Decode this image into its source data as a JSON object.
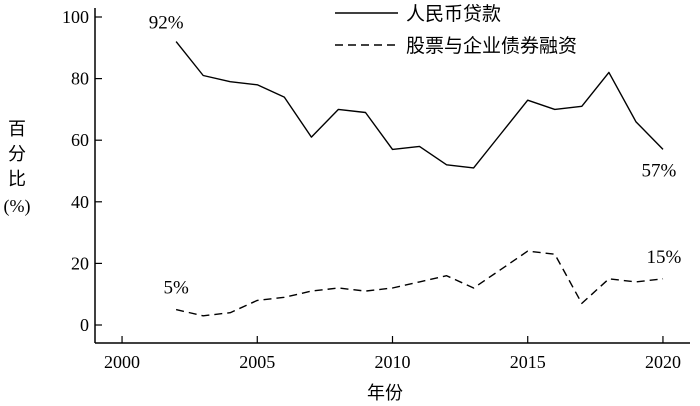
{
  "chart_data": {
    "type": "line",
    "title": "",
    "xlabel": "年份",
    "ylabel_lines": [
      "百",
      "分",
      "比",
      "(%)"
    ],
    "xlim": [
      1999,
      2021
    ],
    "ylim": [
      0,
      100
    ],
    "x_ticks": [
      2000,
      2005,
      2010,
      2015,
      2020
    ],
    "y_ticks": [
      0,
      20,
      40,
      60,
      80,
      100
    ],
    "grid": false,
    "legend_position": "top-right",
    "series": [
      {
        "name": "人民币贷款",
        "style": "solid",
        "color": "#000000",
        "x": [
          2002,
          2003,
          2004,
          2005,
          2006,
          2007,
          2008,
          2009,
          2010,
          2011,
          2012,
          2013,
          2014,
          2015,
          2016,
          2017,
          2018,
          2019,
          2020
        ],
        "values": [
          92,
          81,
          79,
          78,
          74,
          61,
          70,
          69,
          57,
          58,
          52,
          51,
          62,
          73,
          70,
          71,
          82,
          66,
          57
        ]
      },
      {
        "name": "股票与企业债券融资",
        "style": "dashed",
        "color": "#000000",
        "x": [
          2002,
          2003,
          2004,
          2005,
          2006,
          2007,
          2008,
          2009,
          2010,
          2011,
          2012,
          2013,
          2014,
          2015,
          2016,
          2017,
          2018,
          2019,
          2020
        ],
        "values": [
          5,
          3,
          4,
          8,
          9,
          11,
          12,
          11,
          12,
          14,
          16,
          12,
          18,
          24,
          23,
          7,
          15,
          14,
          15
        ]
      }
    ],
    "annotations": [
      {
        "id": "loan-start",
        "text": "92%",
        "series": 0,
        "index": 0,
        "anchor": "middle",
        "dx": -10,
        "dy": -13
      },
      {
        "id": "loan-end",
        "text": "57%",
        "series": 0,
        "index": 18,
        "anchor": "middle",
        "dx": -4,
        "dy": 27
      },
      {
        "id": "stock-start",
        "text": "5%",
        "series": 1,
        "index": 0,
        "anchor": "middle",
        "dx": 0,
        "dy": -16
      },
      {
        "id": "stock-end",
        "text": "15%",
        "series": 1,
        "index": 18,
        "anchor": "middle",
        "dx": 1,
        "dy": -16
      }
    ]
  }
}
